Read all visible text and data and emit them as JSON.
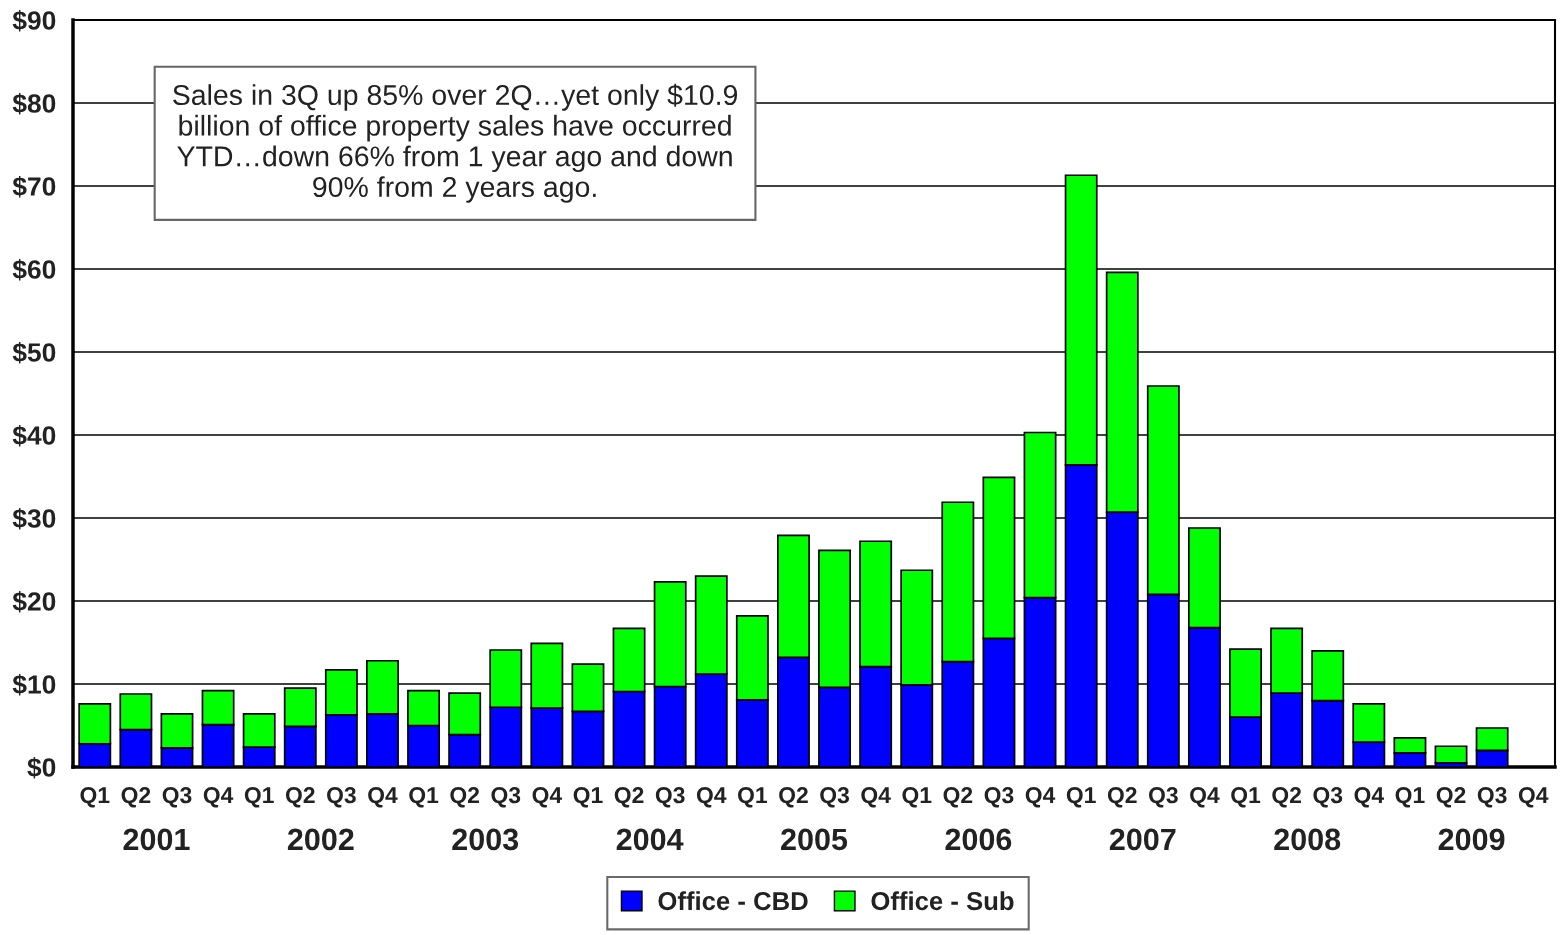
{
  "chart_data": {
    "type": "bar",
    "stacked": true,
    "categories": [
      "Q1",
      "Q2",
      "Q3",
      "Q4",
      "Q1",
      "Q2",
      "Q3",
      "Q4",
      "Q1",
      "Q2",
      "Q3",
      "Q4",
      "Q1",
      "Q2",
      "Q3",
      "Q4",
      "Q1",
      "Q2",
      "Q3",
      "Q4",
      "Q1",
      "Q2",
      "Q3",
      "Q4",
      "Q1",
      "Q2",
      "Q3",
      "Q4",
      "Q1",
      "Q2",
      "Q3",
      "Q4",
      "Q1",
      "Q2",
      "Q3",
      "Q4"
    ],
    "series": [
      {
        "name": "Office - CBD",
        "color": "#0000ff",
        "values": [
          2.8,
          4.5,
          2.3,
          5.1,
          2.4,
          4.9,
          6.3,
          6.4,
          5.0,
          3.9,
          7.2,
          7.1,
          6.7,
          9.1,
          9.7,
          11.2,
          8.1,
          13.2,
          9.6,
          12.1,
          9.9,
          12.7,
          15.5,
          20.4,
          36.4,
          30.7,
          20.8,
          16.8,
          6.0,
          8.9,
          8.0,
          3.0,
          1.7,
          0.5,
          2.0,
          null
        ]
      },
      {
        "name": "Office - Sub",
        "color": "#00ff00",
        "values": [
          4.8,
          4.3,
          4.1,
          4.1,
          4.0,
          4.6,
          5.4,
          6.4,
          4.2,
          5.0,
          6.9,
          7.8,
          5.7,
          7.6,
          12.6,
          11.8,
          10.1,
          14.7,
          16.5,
          15.1,
          13.8,
          19.2,
          19.4,
          19.9,
          34.9,
          28.9,
          25.1,
          12.0,
          8.2,
          7.8,
          6.0,
          4.6,
          1.8,
          2.0,
          2.7,
          null
        ]
      }
    ],
    "ylim": [
      0,
      90
    ],
    "yticks": [
      {
        "value": 0,
        "label": "$0"
      },
      {
        "value": 10,
        "label": "$10"
      },
      {
        "value": 20,
        "label": "$20"
      },
      {
        "value": 30,
        "label": "$30"
      },
      {
        "value": 40,
        "label": "$40"
      },
      {
        "value": 50,
        "label": "$50"
      },
      {
        "value": 60,
        "label": "$60"
      },
      {
        "value": 70,
        "label": "$70"
      },
      {
        "value": 80,
        "label": "$80"
      },
      {
        "value": 90,
        "label": "$90"
      }
    ],
    "grid": "y",
    "legend": "bottom",
    "annotations": [
      "Sales in 3Q up 85% over 2Q…yet only $10.9\nbillion of office property sales have occurred\nYTD…down 66% from 1 year ago and down\n90% from 2 years ago.",
      "2001",
      "2002",
      "2003",
      "2004",
      "2005",
      "2006",
      "2007",
      "2008",
      "2009"
    ]
  }
}
